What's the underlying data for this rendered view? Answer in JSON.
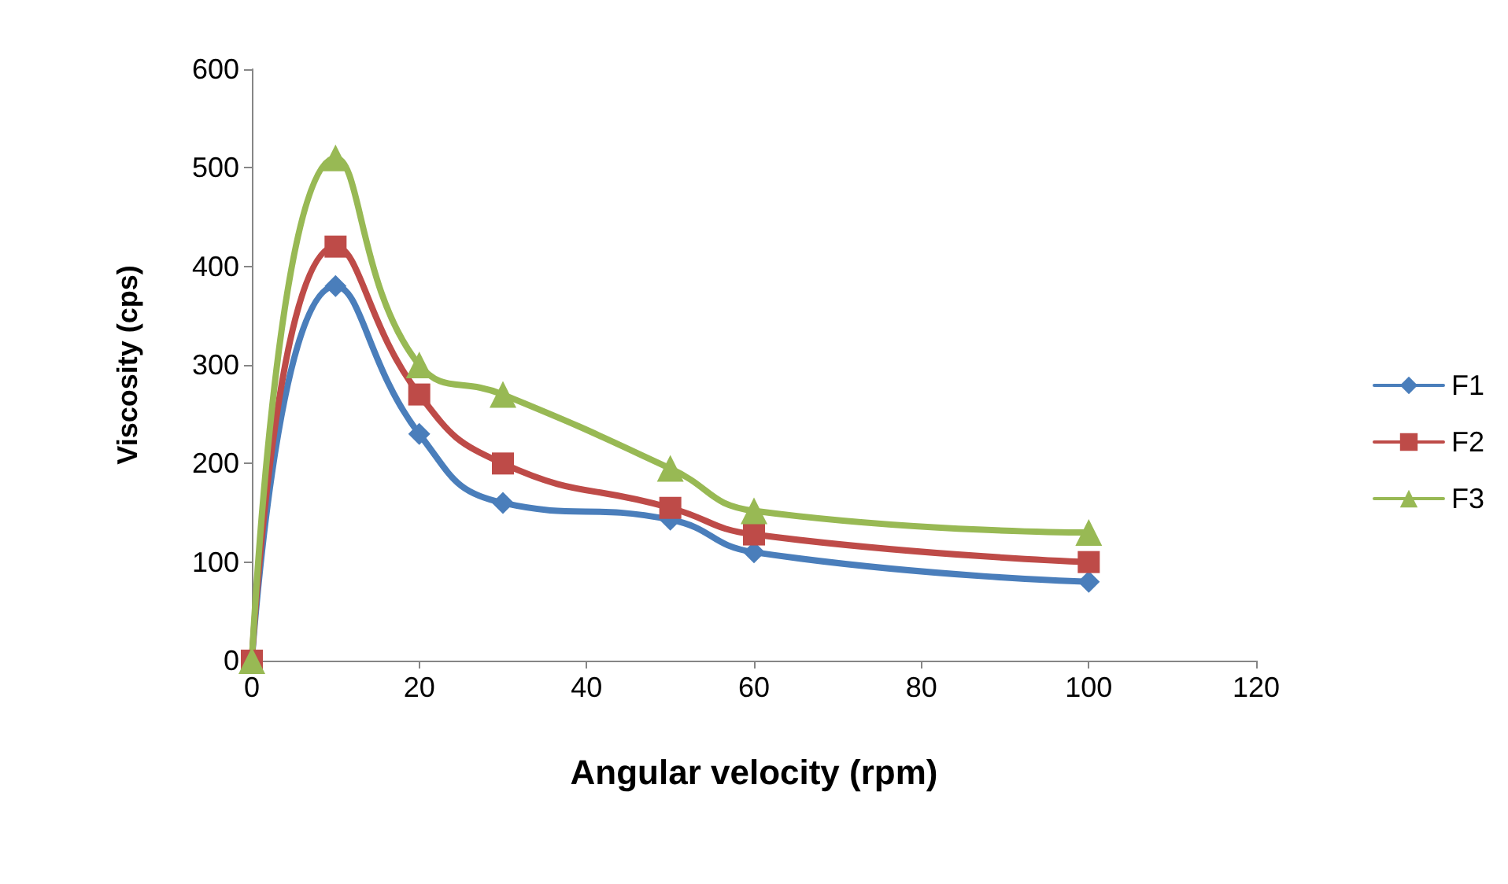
{
  "chart_data": {
    "type": "line",
    "xlabel": "Angular velocity (rpm)",
    "ylabel": "Viscosity (cps)",
    "x": [
      0,
      10,
      20,
      30,
      50,
      60,
      100
    ],
    "series": [
      {
        "name": "F1",
        "color": "#4a7ebb",
        "marker": "diamond",
        "values": [
          0,
          380,
          230,
          160,
          143,
          110,
          80
        ]
      },
      {
        "name": "F2",
        "color": "#be4b48",
        "marker": "square",
        "values": [
          0,
          420,
          270,
          200,
          155,
          128,
          100
        ]
      },
      {
        "name": "F3",
        "color": "#98b954",
        "marker": "triangle",
        "values": [
          0,
          510,
          300,
          270,
          195,
          152,
          130
        ]
      }
    ],
    "xlim": [
      0,
      120
    ],
    "xticks": [
      0,
      20,
      40,
      60,
      80,
      100,
      120
    ],
    "ylim": [
      0,
      600
    ],
    "yticks": [
      0,
      100,
      200,
      300,
      400,
      500,
      600
    ],
    "grid": false,
    "legend": "right",
    "line_style": "solid"
  }
}
